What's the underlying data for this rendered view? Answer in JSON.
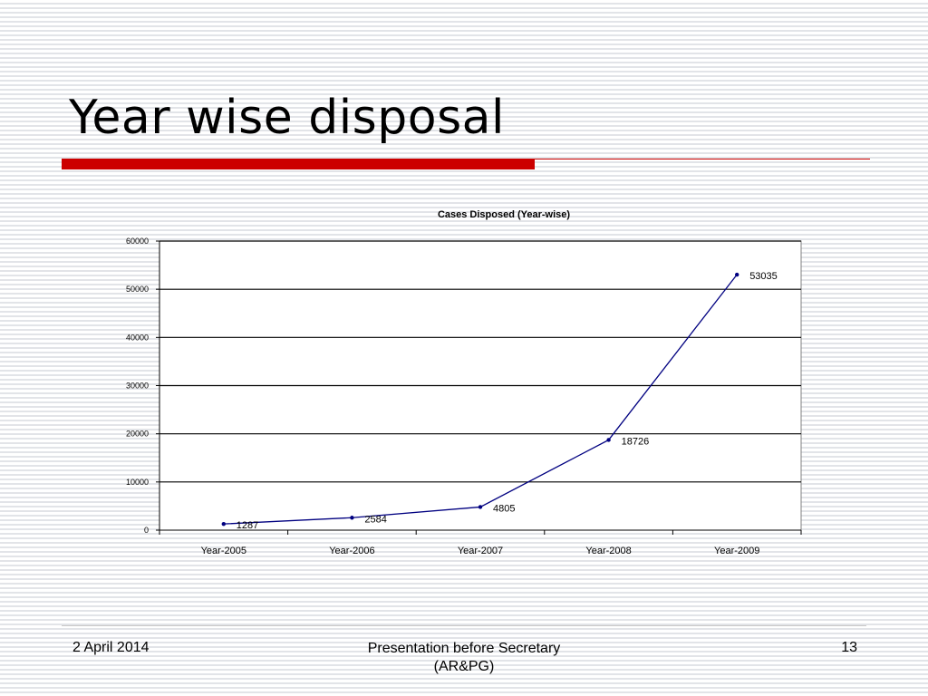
{
  "slide": {
    "title": "Year wise disposal"
  },
  "chart_data": {
    "type": "line",
    "title": "Cases Disposed (Year-wise)",
    "categories": [
      "Year-2005",
      "Year-2006",
      "Year-2007",
      "Year-2008",
      "Year-2009"
    ],
    "series": [
      {
        "values": [
          1287,
          2584,
          4805,
          18726,
          53035
        ],
        "color": "#000080"
      }
    ],
    "ylim": [
      0,
      60000
    ],
    "yticks": [
      0,
      10000,
      20000,
      30000,
      40000,
      50000,
      60000
    ],
    "grid": true,
    "legend": "none",
    "data_labels": true
  },
  "footer": {
    "date": "2 April 2014",
    "center_line1": "Presentation before Secretary",
    "center_line2": "(AR&PG)",
    "page": "13"
  },
  "colors": {
    "accent": "#cc0000",
    "series_line": "#000080"
  }
}
